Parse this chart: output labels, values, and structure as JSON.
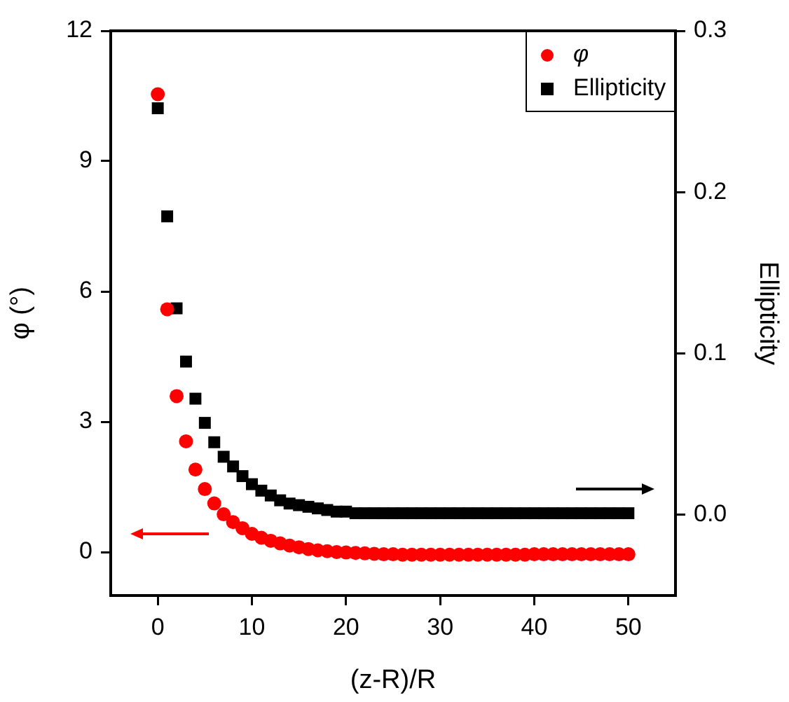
{
  "chart_data": {
    "type": "scatter",
    "xlabel": "(z-R)/R",
    "ylabel": "φ (°)",
    "y2label": "Ellipticity",
    "x": [
      0,
      1,
      2,
      3,
      4,
      5,
      6,
      7,
      8,
      9,
      10,
      11,
      12,
      13,
      14,
      15,
      16,
      17,
      18,
      19,
      20,
      21,
      22,
      23,
      24,
      25,
      26,
      27,
      28,
      29,
      30,
      31,
      32,
      33,
      34,
      35,
      36,
      37,
      38,
      39,
      40,
      41,
      42,
      43,
      44,
      45,
      46,
      47,
      48,
      49,
      50
    ],
    "xlim": [
      -5,
      55
    ],
    "xticks": [
      0,
      10,
      20,
      30,
      40,
      50
    ],
    "ylim": [
      -1,
      12
    ],
    "yticks": [
      0,
      3,
      6,
      9,
      12
    ],
    "y2lim": [
      -0.05,
      0.3
    ],
    "y2ticks": [
      {
        "value": 0,
        "label": "0.0"
      },
      0.1,
      0.2,
      0.3
    ],
    "grid": false,
    "legend": "top right",
    "series": [
      {
        "name": "φ",
        "color": "#ff0000",
        "marker": "circle",
        "values": [
          10.54,
          5.59,
          3.59,
          2.55,
          1.9,
          1.45,
          1.12,
          0.87,
          0.69,
          0.55,
          0.42,
          0.33,
          0.26,
          0.2,
          0.15,
          0.11,
          0.07,
          0.04,
          0.02,
          0,
          -0.01,
          -0.02,
          -0.03,
          -0.04,
          -0.05,
          -0.05,
          -0.06,
          -0.06,
          -0.06,
          -0.06,
          -0.06,
          -0.06,
          -0.06,
          -0.06,
          -0.06,
          -0.06,
          -0.06,
          -0.06,
          -0.06,
          -0.06,
          -0.05,
          -0.05,
          -0.05,
          -0.05,
          -0.05,
          -0.05,
          -0.05,
          -0.05,
          -0.05,
          -0.05,
          -0.05
        ]
      },
      {
        "name": "Ellipticity",
        "color": "#000000",
        "marker": "square",
        "axis": "y2",
        "values": [
          0.252,
          0.185,
          0.128,
          0.095,
          0.072,
          0.057,
          0.045,
          0.036,
          0.03,
          0.024,
          0.019,
          0.015,
          0.012,
          0.009,
          0.007,
          0.006,
          0.005,
          0.004,
          0.003,
          0.002,
          0.002,
          0.001,
          0.001,
          0.001,
          0.001,
          0.001,
          0.001,
          0.001,
          0.001,
          0.001,
          0.001,
          0.001,
          0.001,
          0.001,
          0.001,
          0.001,
          0.001,
          0.001,
          0.001,
          0.001,
          0.001,
          0.001,
          0.001,
          0.001,
          0.001,
          0.001,
          0.001,
          0.001,
          0.001,
          0.001,
          0.001
        ]
      }
    ]
  }
}
